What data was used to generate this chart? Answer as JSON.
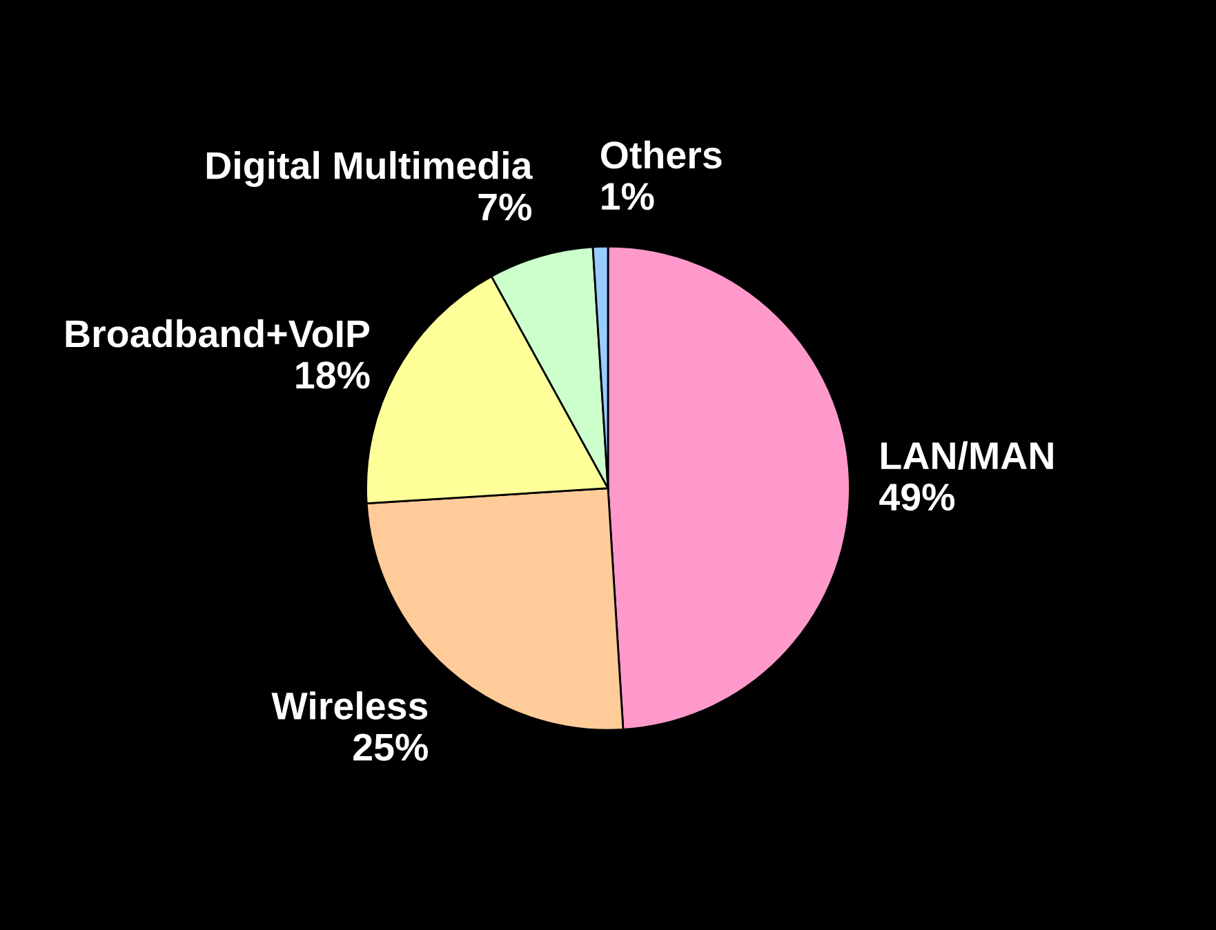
{
  "chart_data": {
    "type": "pie",
    "categories": [
      "LAN/MAN",
      "Wireless",
      "Broadband+VoIP",
      "Digital Multimedia",
      "Others"
    ],
    "values": [
      49,
      25,
      18,
      7,
      1
    ],
    "value_labels": [
      "49%",
      "25%",
      "18%",
      "7%",
      "1%"
    ],
    "colors": [
      "#ff99cc",
      "#ffcc99",
      "#ffff99",
      "#ccffcc",
      "#99ccff"
    ]
  }
}
